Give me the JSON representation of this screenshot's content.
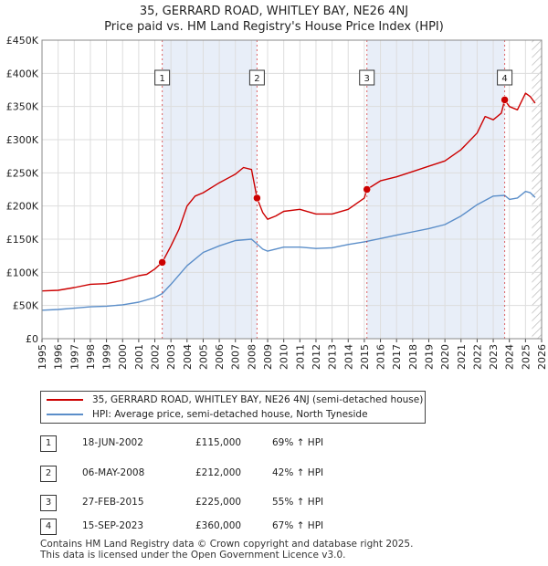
{
  "chart_data": {
    "type": "line",
    "title": "35, GERRARD ROAD, WHITLEY BAY, NE26 4NJ",
    "subtitle": "Price paid vs. HM Land Registry's House Price Index (HPI)",
    "xlim": [
      1995,
      2026
    ],
    "ylim": [
      0,
      450000
    ],
    "x_ticks": [
      "1995",
      "1996",
      "1997",
      "1998",
      "1999",
      "2000",
      "2001",
      "2002",
      "2003",
      "2004",
      "2005",
      "2006",
      "2007",
      "2008",
      "2009",
      "2010",
      "2011",
      "2012",
      "2013",
      "2014",
      "2015",
      "2016",
      "2017",
      "2018",
      "2019",
      "2020",
      "2021",
      "2022",
      "2023",
      "2024",
      "2025",
      "2026"
    ],
    "y_ticks": [
      {
        "value": 0,
        "label": "£0"
      },
      {
        "value": 50000,
        "label": "£50K"
      },
      {
        "value": 100000,
        "label": "£100K"
      },
      {
        "value": 150000,
        "label": "£150K"
      },
      {
        "value": 200000,
        "label": "£200K"
      },
      {
        "value": 250000,
        "label": "£250K"
      },
      {
        "value": 300000,
        "label": "£300K"
      },
      {
        "value": 350000,
        "label": "£350K"
      },
      {
        "value": 400000,
        "label": "£400K"
      },
      {
        "value": 450000,
        "label": "£450K"
      }
    ],
    "grid": true,
    "shaded_periods": [
      {
        "from": 2002.46,
        "to": 2008.34
      },
      {
        "from": 2015.16,
        "to": 2023.71
      },
      {
        "from": 2025.4,
        "to": 2026,
        "hatched": true
      }
    ],
    "series": [
      {
        "name": "35, GERRARD ROAD, WHITLEY BAY, NE26 4NJ (semi-detached house)",
        "color": "#cc0000",
        "x": [
          1995,
          1996,
          1997,
          1998,
          1999,
          2000,
          2001,
          2001.5,
          2002,
          2002.46,
          2003,
          2003.5,
          2004,
          2004.5,
          2005,
          2006,
          2007,
          2007.5,
          2008,
          2008.34,
          2008.7,
          2009,
          2009.5,
          2010,
          2011,
          2012,
          2013,
          2014,
          2015,
          2015.16,
          2016,
          2017,
          2018,
          2019,
          2020,
          2021,
          2022,
          2022.5,
          2023,
          2023.5,
          2023.71,
          2024,
          2024.5,
          2025,
          2025.3,
          2025.6
        ],
        "values": [
          72000,
          73000,
          77000,
          82000,
          83000,
          88000,
          95000,
          97000,
          105000,
          115000,
          140000,
          165000,
          200000,
          215000,
          220000,
          235000,
          248000,
          258000,
          255000,
          212000,
          190000,
          180000,
          185000,
          192000,
          195000,
          188000,
          188000,
          195000,
          212000,
          225000,
          238000,
          244000,
          252000,
          260000,
          268000,
          285000,
          310000,
          335000,
          330000,
          340000,
          360000,
          350000,
          345000,
          370000,
          365000,
          355000
        ]
      },
      {
        "name": "HPI: Average price, semi-detached house, North Tyneside",
        "color": "#5b8ec9",
        "x": [
          1995,
          1996,
          1997,
          1998,
          1999,
          2000,
          2001,
          2002,
          2002.46,
          2003,
          2004,
          2005,
          2006,
          2007,
          2008,
          2008.7,
          2009,
          2010,
          2011,
          2012,
          2013,
          2014,
          2015,
          2016,
          2017,
          2018,
          2019,
          2020,
          2021,
          2022,
          2023,
          2023.71,
          2024,
          2024.5,
          2025,
          2025.3,
          2025.6
        ],
        "values": [
          43000,
          44000,
          46000,
          48000,
          49000,
          51000,
          55000,
          62000,
          68000,
          82000,
          110000,
          130000,
          140000,
          148000,
          150000,
          135000,
          132000,
          138000,
          138000,
          136000,
          137000,
          142000,
          146000,
          151000,
          156000,
          161000,
          166000,
          172000,
          185000,
          202000,
          215000,
          216000,
          210000,
          212000,
          222000,
          220000,
          213000
        ]
      }
    ],
    "markers": [
      {
        "label": "1",
        "x": 2002.46,
        "y": 115000
      },
      {
        "label": "2",
        "x": 2008.34,
        "y": 212000
      },
      {
        "label": "3",
        "x": 2015.16,
        "y": 225000
      },
      {
        "label": "4",
        "x": 2023.71,
        "y": 360000
      }
    ]
  },
  "legend": {
    "property_label": "35, GERRARD ROAD, WHITLEY BAY, NE26 4NJ (semi-detached house)",
    "property_color": "#cc0000",
    "hpi_label": "HPI: Average price, semi-detached house, North Tyneside",
    "hpi_color": "#5b8ec9"
  },
  "sales": [
    {
      "num": "1",
      "date": "18-JUN-2002",
      "price": "£115,000",
      "hpi": "69% ↑ HPI"
    },
    {
      "num": "2",
      "date": "06-MAY-2008",
      "price": "£212,000",
      "hpi": "42% ↑ HPI"
    },
    {
      "num": "3",
      "date": "27-FEB-2015",
      "price": "£225,000",
      "hpi": "55% ↑ HPI"
    },
    {
      "num": "4",
      "date": "15-SEP-2023",
      "price": "£360,000",
      "hpi": "67% ↑ HPI"
    }
  ],
  "footer": {
    "line1": "Contains HM Land Registry data © Crown copyright and database right 2025.",
    "line2": "This data is licensed under the Open Government Licence v3.0."
  }
}
